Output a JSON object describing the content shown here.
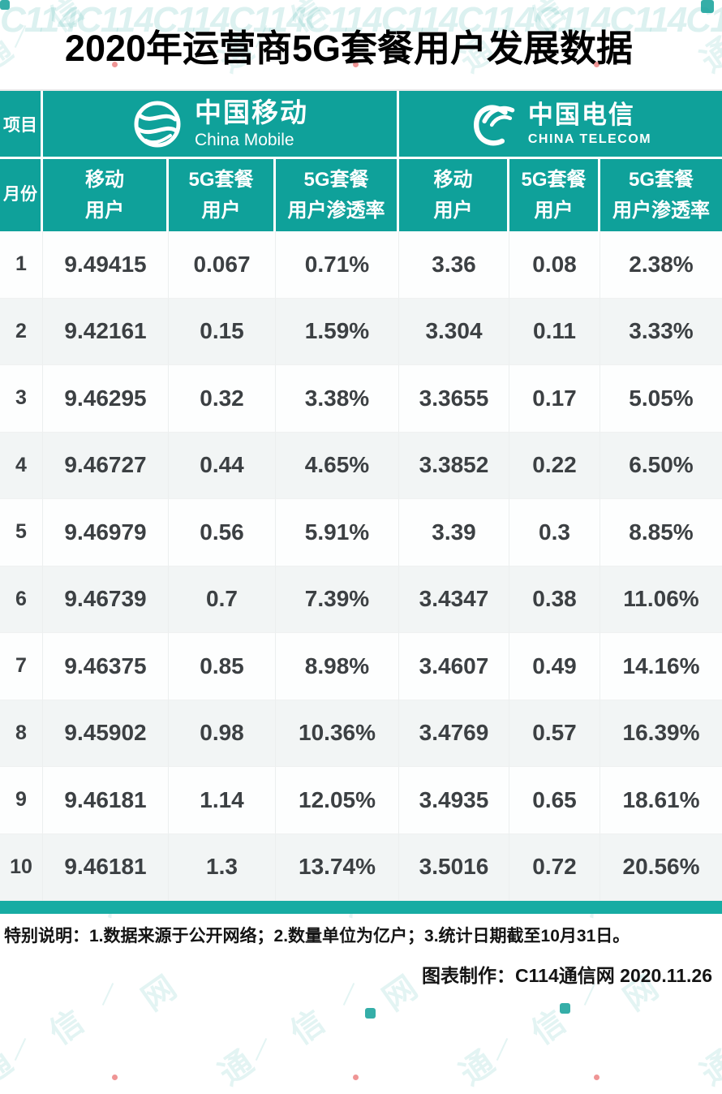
{
  "title": "2020年运营商5G套餐用户发展数据",
  "colors": {
    "teal_header": "#0FA19A",
    "teal_bar": "#17ACA3",
    "data_text": "#3C4043",
    "row_alt_bg": "#F2F5F5",
    "watermark_teal": "#17A39C",
    "watermark_red_dot": "#E23E3E"
  },
  "header": {
    "item_label": "项目",
    "month_label": "月份",
    "operators": [
      {
        "name_cn": "中国移动",
        "name_en": "China Mobile"
      },
      {
        "name_cn": "中国电信",
        "name_en": "CHINA TELECOM"
      }
    ],
    "columns": [
      {
        "line1": "移动",
        "line2": "用户"
      },
      {
        "line1": "5G套餐",
        "line2": "用户"
      },
      {
        "line1": "5G套餐",
        "line2": "用户渗透率"
      },
      {
        "line1": "移动",
        "line2": "用户"
      },
      {
        "line1": "5G套餐",
        "line2": "用户"
      },
      {
        "line1": "5G套餐",
        "line2": "用户渗透率"
      }
    ]
  },
  "chart_data": {
    "type": "table",
    "title": "2020年运营商5G套餐用户发展数据",
    "columns": [
      "月份",
      "中国移动 移动用户",
      "中国移动 5G套餐用户",
      "中国移动 5G套餐用户渗透率",
      "中国电信 移动用户",
      "中国电信 5G套餐用户",
      "中国电信 5G套餐用户渗透率"
    ],
    "rows": [
      [
        "1",
        "9.49415",
        "0.067",
        "0.71%",
        "3.36",
        "0.08",
        "2.38%"
      ],
      [
        "2",
        "9.42161",
        "0.15",
        "1.59%",
        "3.304",
        "0.11",
        "3.33%"
      ],
      [
        "3",
        "9.46295",
        "0.32",
        "3.38%",
        "3.3655",
        "0.17",
        "5.05%"
      ],
      [
        "4",
        "9.46727",
        "0.44",
        "4.65%",
        "3.3852",
        "0.22",
        "6.50%"
      ],
      [
        "5",
        "9.46979",
        "0.56",
        "5.91%",
        "3.39",
        "0.3",
        "8.85%"
      ],
      [
        "6",
        "9.46739",
        "0.7",
        "7.39%",
        "3.4347",
        "0.38",
        "11.06%"
      ],
      [
        "7",
        "9.46375",
        "0.85",
        "8.98%",
        "3.4607",
        "0.49",
        "14.16%"
      ],
      [
        "8",
        "9.45902",
        "0.98",
        "10.36%",
        "3.4769",
        "0.57",
        "16.39%"
      ],
      [
        "9",
        "9.46181",
        "1.14",
        "12.05%",
        "3.4935",
        "0.65",
        "18.61%"
      ],
      [
        "10",
        "9.46181",
        "1.3",
        "13.74%",
        "3.5016",
        "0.72",
        "20.56%"
      ]
    ],
    "unit_note": "数量单位为亿户"
  },
  "footer": {
    "note": "特别说明：1.数据来源于公开网络；2.数量单位为亿户；3.统计日期截至10月31日。",
    "credit": "图表制作：C114通信网  2020.11.26"
  },
  "watermark": {
    "chars": [
      "网",
      "信",
      "通"
    ],
    "logo": "C114"
  }
}
